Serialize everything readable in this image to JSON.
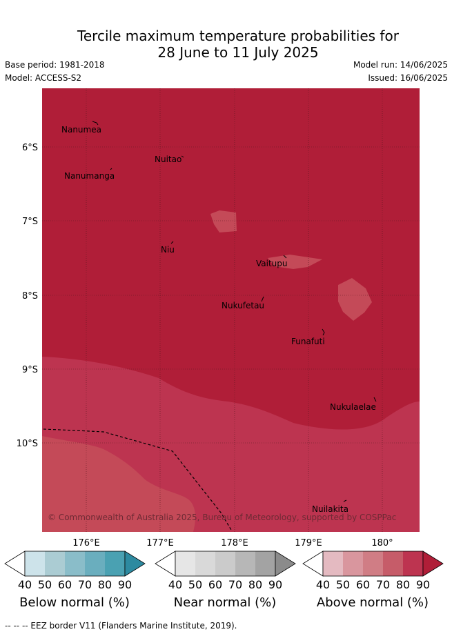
{
  "title": {
    "line1": "Tercile maximum temperature probabilities for",
    "line2": "28 June to 11 July 2025"
  },
  "meta": {
    "base_period": "Base period: 1981-2018",
    "model": "Model: ACCESS-S2",
    "model_run": "Model run: 14/06/2025",
    "issued": "Issued: 16/06/2025"
  },
  "axes": {
    "lat_labels": [
      "6°S",
      "7°S",
      "8°S",
      "9°S",
      "10°S"
    ],
    "lon_labels": [
      "176°E",
      "177°E",
      "178°E",
      "179°E",
      "180°"
    ]
  },
  "places": [
    "Nanumea",
    "Nuitao",
    "Nanumanga",
    "Niu",
    "Vaitupu",
    "Nukufetau",
    "Funafuti",
    "Nukulaelae",
    "Nuilakita"
  ],
  "copyright": "© Commonwealth of Australia 2025, Bureau of Meteorology, supported by COSPPac",
  "colorbars": [
    {
      "label": "Below normal (%)",
      "ticks": [
        "40",
        "50",
        "60",
        "70",
        "80",
        "90"
      ],
      "colors": [
        "#cde3ea",
        "#abccd3",
        "#8abdc9",
        "#6aaebe",
        "#4aa1b2",
        "#2d8aa0"
      ]
    },
    {
      "label": "Near normal (%)",
      "ticks": [
        "40",
        "50",
        "60",
        "70",
        "80",
        "90"
      ],
      "colors": [
        "#e6e6e6",
        "#d9d9d9",
        "#cbcbcb",
        "#b7b7b7",
        "#a3a3a3",
        "#8b8b8b"
      ]
    },
    {
      "label": "Above normal (%)",
      "ticks": [
        "40",
        "50",
        "60",
        "70",
        "80",
        "90"
      ],
      "colors": [
        "#e4bac1",
        "#d9969e",
        "#d07d85",
        "#c65c69",
        "#bd3450",
        "#b01e38"
      ]
    }
  ],
  "footer": "--  --  -- EEZ border V11 (Flanders Marine Institute, 2019).",
  "colors": {
    "map_dark": "#b01e38",
    "map_mid": "#bd3450",
    "map_light": "#c44a58"
  }
}
